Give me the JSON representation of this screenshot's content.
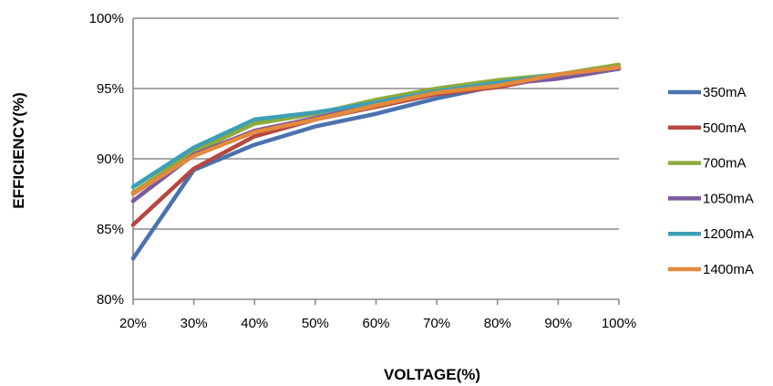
{
  "chart_data": {
    "type": "line",
    "xlabel": "VOLTAGE(%)",
    "ylabel": "EFFICIENCY(%)",
    "x": [
      "20%",
      "30%",
      "40%",
      "50%",
      "60%",
      "70%",
      "80%",
      "90%",
      "100%"
    ],
    "y_ticks": [
      "80%",
      "85%",
      "90%",
      "95%",
      "100%"
    ],
    "ylim": [
      80,
      100
    ],
    "grid": true,
    "legend": "right",
    "series": [
      {
        "name": "350mA",
        "color": "#4a72b0",
        "values": [
          82.9,
          89.2,
          91.0,
          92.3,
          93.2,
          94.3,
          95.2,
          96.0,
          96.5
        ]
      },
      {
        "name": "500mA",
        "color": "#b5473f",
        "values": [
          85.3,
          89.3,
          91.6,
          92.8,
          93.7,
          94.6,
          95.1,
          95.9,
          96.4
        ]
      },
      {
        "name": "700mA",
        "color": "#8cab3e",
        "values": [
          87.6,
          90.5,
          92.5,
          93.2,
          94.2,
          95.0,
          95.6,
          96.0,
          96.7
        ]
      },
      {
        "name": "1050mA",
        "color": "#7b5a9e",
        "values": [
          87.0,
          90.3,
          92.0,
          92.9,
          93.9,
          94.7,
          95.3,
          95.7,
          96.4
        ]
      },
      {
        "name": "1200mA",
        "color": "#3d9fb6",
        "values": [
          88.0,
          90.8,
          92.8,
          93.3,
          94.0,
          94.8,
          95.4,
          96.0,
          96.5
        ]
      },
      {
        "name": "1400mA",
        "color": "#e38a3c",
        "values": [
          87.5,
          90.2,
          91.9,
          92.8,
          93.8,
          94.7,
          95.2,
          96.0,
          96.5
        ]
      }
    ]
  }
}
